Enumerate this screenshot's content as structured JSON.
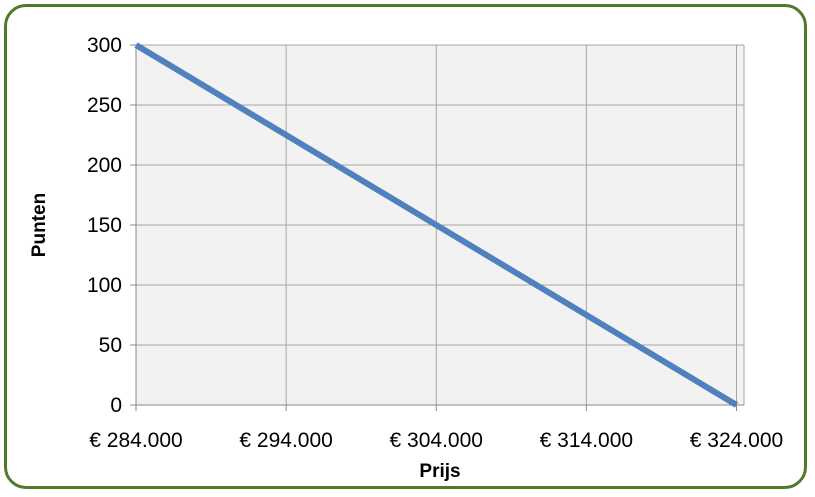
{
  "chart_data": {
    "type": "line",
    "title": "",
    "xlabel": "Prijs",
    "ylabel": "Punten",
    "x": [
      284000,
      324000
    ],
    "xlim": [
      284000,
      324500
    ],
    "ylim": [
      0,
      300
    ],
    "xticks": [
      284000,
      294000,
      304000,
      314000,
      324000
    ],
    "xtick_labels": [
      "€ 284.000",
      "€ 294.000",
      "€ 304.000",
      "€ 314.000",
      "€ 324.000"
    ],
    "yticks": [
      0,
      50,
      100,
      150,
      200,
      250,
      300
    ],
    "ytick_labels": [
      "0",
      "50",
      "100",
      "150",
      "200",
      "250",
      "300"
    ],
    "series": [
      {
        "values": [
          300,
          0
        ]
      }
    ],
    "grid": true,
    "legend": "none",
    "colors": {
      "line": "#4f81bd",
      "plot_background": "#f2f2f2",
      "gridline": "#a6a6a6",
      "frame_border": "#4f7a28"
    }
  }
}
